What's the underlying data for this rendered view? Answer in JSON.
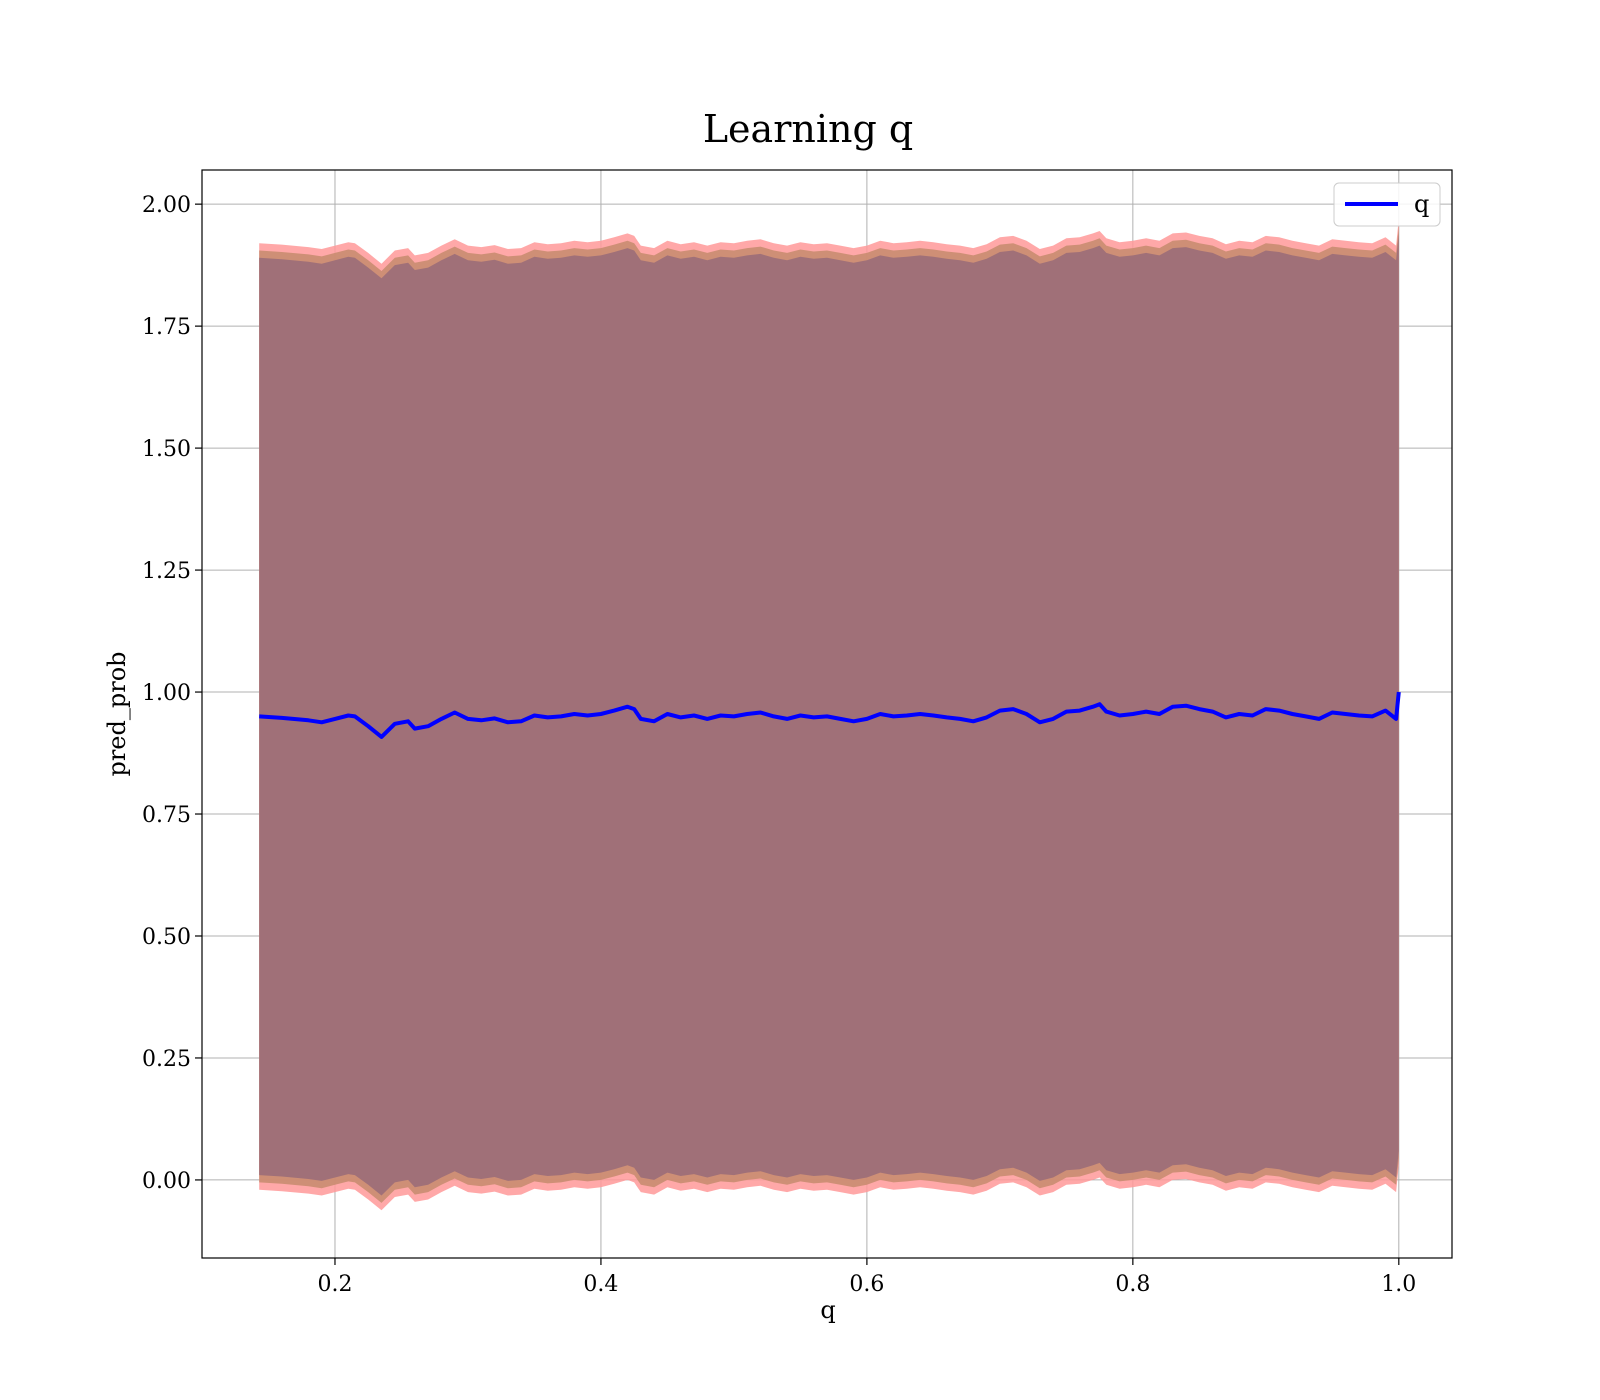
{
  "chart_data": {
    "type": "line",
    "title": "Learning q",
    "xlabel": "q",
    "ylabel": "pred_prob",
    "xlim": [
      0.1,
      1.04
    ],
    "ylim": [
      -0.16,
      2.07
    ],
    "xticks": [
      0.2,
      0.4,
      0.6,
      0.8,
      1.0
    ],
    "xtick_labels": [
      "0.2",
      "0.4",
      "0.6",
      "0.8",
      "1.0"
    ],
    "yticks": [
      0.0,
      0.25,
      0.5,
      0.75,
      1.0,
      1.25,
      1.5,
      1.75,
      2.0
    ],
    "ytick_labels": [
      "0.00",
      "0.25",
      "0.50",
      "0.75",
      "1.00",
      "1.25",
      "1.50",
      "1.75",
      "2.00"
    ],
    "grid": true,
    "legend_placement": "top-right",
    "colors": {
      "line": "#0000ff",
      "outer_band": "#ff9999",
      "mid_band": "#c98c70",
      "inner_band": "#a07078"
    },
    "series": [
      {
        "name": "q",
        "x": [
          0.143,
          0.16,
          0.18,
          0.19,
          0.2,
          0.21,
          0.215,
          0.225,
          0.235,
          0.245,
          0.255,
          0.26,
          0.27,
          0.28,
          0.29,
          0.3,
          0.31,
          0.32,
          0.33,
          0.34,
          0.35,
          0.36,
          0.37,
          0.38,
          0.39,
          0.4,
          0.41,
          0.42,
          0.425,
          0.43,
          0.44,
          0.45,
          0.46,
          0.47,
          0.48,
          0.49,
          0.5,
          0.51,
          0.52,
          0.53,
          0.54,
          0.55,
          0.56,
          0.57,
          0.58,
          0.59,
          0.6,
          0.61,
          0.62,
          0.63,
          0.64,
          0.65,
          0.66,
          0.67,
          0.68,
          0.69,
          0.7,
          0.71,
          0.72,
          0.73,
          0.74,
          0.75,
          0.76,
          0.77,
          0.775,
          0.78,
          0.79,
          0.8,
          0.81,
          0.82,
          0.83,
          0.84,
          0.85,
          0.86,
          0.87,
          0.88,
          0.89,
          0.9,
          0.91,
          0.92,
          0.93,
          0.94,
          0.95,
          0.96,
          0.97,
          0.98,
          0.99,
          0.998,
          1.0
        ],
        "y": [
          0.95,
          0.947,
          0.942,
          0.938,
          0.945,
          0.952,
          0.95,
          0.93,
          0.908,
          0.935,
          0.94,
          0.925,
          0.93,
          0.945,
          0.958,
          0.945,
          0.942,
          0.946,
          0.938,
          0.94,
          0.952,
          0.948,
          0.95,
          0.955,
          0.952,
          0.955,
          0.962,
          0.97,
          0.965,
          0.945,
          0.94,
          0.955,
          0.948,
          0.952,
          0.945,
          0.952,
          0.95,
          0.955,
          0.958,
          0.95,
          0.945,
          0.952,
          0.948,
          0.95,
          0.945,
          0.94,
          0.945,
          0.955,
          0.95,
          0.952,
          0.955,
          0.952,
          0.948,
          0.945,
          0.94,
          0.948,
          0.962,
          0.965,
          0.955,
          0.938,
          0.945,
          0.96,
          0.962,
          0.97,
          0.975,
          0.96,
          0.952,
          0.955,
          0.96,
          0.955,
          0.97,
          0.972,
          0.965,
          0.96,
          0.948,
          0.955,
          0.952,
          0.965,
          0.962,
          0.955,
          0.95,
          0.945,
          0.958,
          0.955,
          0.952,
          0.95,
          0.962,
          0.945,
          1.0
        ]
      }
    ],
    "bands": [
      {
        "label": "outer",
        "offset_low": -0.97,
        "offset_high": 0.97
      },
      {
        "label": "mid",
        "offset_low": -0.955,
        "offset_high": 0.955
      },
      {
        "label": "inner",
        "offset_low": -0.94,
        "offset_high": 0.94
      }
    ]
  }
}
